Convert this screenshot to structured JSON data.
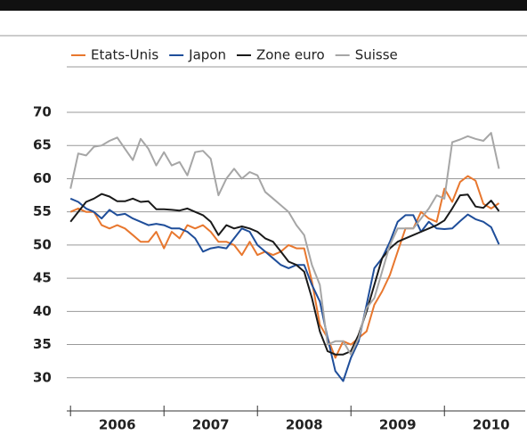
{
  "chart_data": {
    "type": "line",
    "x": [
      2006,
      2006.083,
      2006.167,
      2006.25,
      2006.333,
      2006.417,
      2006.5,
      2006.583,
      2006.667,
      2006.75,
      2006.833,
      2006.917,
      2007,
      2007.083,
      2007.167,
      2007.25,
      2007.333,
      2007.417,
      2007.5,
      2007.583,
      2007.667,
      2007.75,
      2007.833,
      2007.917,
      2008,
      2008.083,
      2008.167,
      2008.25,
      2008.333,
      2008.417,
      2008.5,
      2008.583,
      2008.667,
      2008.75,
      2008.833,
      2008.917,
      2009,
      2009.083,
      2009.167,
      2009.25,
      2009.333,
      2009.417,
      2009.5,
      2009.583,
      2009.667,
      2009.75,
      2009.833,
      2009.917,
      2010,
      2010.083,
      2010.167,
      2010.25,
      2010.333,
      2010.417,
      2010.5,
      2010.583
    ],
    "series": [
      {
        "name": "Etats-Unis",
        "color": "#e8772e",
        "values": [
          55,
          55.5,
          55,
          55,
          53,
          52.5,
          53,
          52.5,
          51.5,
          50.5,
          50.5,
          52,
          49.5,
          52,
          51,
          53,
          52.5,
          53,
          52,
          50.5,
          50.5,
          50,
          48.5,
          50.5,
          48.5,
          49,
          48.5,
          49,
          50,
          49.5,
          49.5,
          44.5,
          38,
          36,
          33,
          35.5,
          35,
          36,
          37,
          41,
          43,
          45.5,
          49,
          52.5,
          52.5,
          55,
          54,
          53.5,
          58.5,
          56.5,
          59.5,
          60.4,
          59.7,
          56.2,
          55.5,
          56.3
        ]
      },
      {
        "name": "Japon",
        "color": "#1f4e9a",
        "values": [
          57,
          56.5,
          55.5,
          55,
          54,
          55.3,
          54.5,
          54.7,
          54,
          53.5,
          53,
          53.2,
          53,
          52.5,
          52.5,
          52,
          51,
          49,
          49.5,
          49.7,
          49.5,
          51,
          52.5,
          52,
          50,
          49,
          48,
          47,
          46.5,
          47,
          47,
          44,
          41.5,
          36,
          31,
          29.5,
          33,
          35.5,
          41,
          46.5,
          48,
          50.5,
          53.5,
          54.5,
          54.5,
          52,
          53.5,
          52.5,
          52.4,
          52.5,
          53.6,
          54.6,
          53.9,
          53.5,
          52.7,
          50.1
        ]
      },
      {
        "name": "Zone euro",
        "color": "#1a1a1a",
        "values": [
          53.5,
          55,
          56.5,
          57,
          57.7,
          57.3,
          56.6,
          56.6,
          57,
          56.5,
          56.6,
          55.4,
          55.4,
          55.3,
          55.2,
          55.5,
          55,
          54.5,
          53.5,
          51.5,
          53,
          52.5,
          52.8,
          52.5,
          52,
          51,
          50.5,
          49,
          47.5,
          47,
          46,
          42,
          37,
          34,
          33.5,
          33.5,
          34,
          36.5,
          40,
          44,
          48,
          49.5,
          50.5,
          51,
          51.5,
          52,
          52.5,
          53,
          53.7,
          55.5,
          57.5,
          57.6,
          55.8,
          55.6,
          56.7,
          55.1
        ]
      },
      {
        "name": "Suisse",
        "color": "#a6a6a6",
        "values": [
          58.5,
          63.8,
          63.5,
          64.8,
          65,
          65.7,
          66.2,
          64.5,
          62.8,
          66,
          64.5,
          62,
          64,
          62,
          62.5,
          60.5,
          64,
          64.2,
          63,
          57.5,
          60,
          61.5,
          60,
          61,
          60.5,
          58,
          57,
          56,
          55,
          53,
          51.5,
          47,
          44,
          35,
          35.5,
          35.5,
          33.5,
          36,
          40.5,
          42,
          46,
          50,
          52.5,
          52.5,
          52.5,
          54,
          55.5,
          57.5,
          57,
          65.5,
          65.9,
          66.4,
          66,
          65.7,
          66.9,
          61.5
        ]
      }
    ],
    "xlim": [
      2005.96,
      2010.87
    ],
    "xticks": [
      {
        "value": 2006.5,
        "label": "2006"
      },
      {
        "value": 2007.5,
        "label": "2007"
      },
      {
        "value": 2008.5,
        "label": "2008"
      },
      {
        "value": 2009.5,
        "label": "2009"
      },
      {
        "value": 2010.5,
        "label": "2010"
      }
    ],
    "xtick_marks": [
      2006,
      2007,
      2008,
      2009,
      2010
    ],
    "ylim": [
      25,
      70
    ],
    "yticks": [
      30,
      35,
      40,
      45,
      50,
      55,
      60,
      65,
      70
    ],
    "grid": true,
    "legend": "top"
  }
}
